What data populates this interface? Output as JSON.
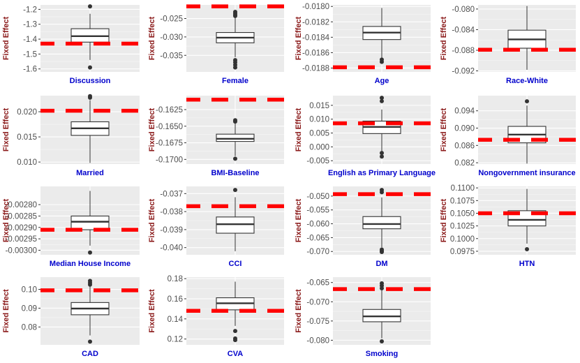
{
  "chart_data": [
    {
      "type": "box",
      "title": "",
      "xlabel": "Discussion",
      "ylabel": "Fixed Effect",
      "ylim": [
        -1.62,
        -1.17
      ],
      "yticks": [
        -1.6,
        -1.5,
        -1.4,
        -1.3,
        -1.2
      ],
      "tick_labels": [
        "-1.6",
        "-1.5",
        "-1.4",
        "-1.3",
        "-1.2"
      ],
      "box": {
        "whisker_low": -1.54,
        "q1": -1.42,
        "median": -1.38,
        "q3": -1.33,
        "whisker_high": -1.23
      },
      "outliers": [
        -1.18,
        -1.59
      ],
      "reference_line": -1.43
    },
    {
      "type": "box",
      "title": "",
      "xlabel": "Female",
      "ylabel": "Fixed Effect",
      "ylim": [
        -0.0395,
        -0.0213
      ],
      "yticks": [
        -0.035,
        -0.03,
        -0.025
      ],
      "tick_labels": [
        "-0.035",
        "-0.030",
        "-0.025"
      ],
      "box": {
        "whisker_low": -0.0355,
        "q1": -0.0316,
        "median": -0.0302,
        "q3": -0.0288,
        "whisker_high": -0.0247
      },
      "outliers": [
        -0.0232,
        -0.0236,
        -0.024,
        -0.0243,
        -0.0363,
        -0.0369,
        -0.0376,
        -0.0383
      ],
      "reference_line": -0.0217
    },
    {
      "type": "box",
      "title": "",
      "xlabel": "Age",
      "ylabel": "Fixed Effect",
      "ylim": [
        -0.01885,
        -0.01798
      ],
      "yticks": [
        -0.0188,
        -0.0186,
        -0.0184,
        -0.0182,
        -0.018
      ],
      "tick_labels": [
        "-0.0188",
        "-0.0186",
        "-0.0184",
        "-0.0182",
        "-0.0180"
      ],
      "box": {
        "whisker_low": -0.01867,
        "q1": -0.01843,
        "median": -0.01834,
        "q3": -0.01826,
        "whisker_high": -0.01802
      },
      "outliers": [
        -0.01869,
        -0.01872
      ],
      "reference_line": -0.01879
    },
    {
      "type": "box",
      "title": "",
      "xlabel": "Race-White",
      "ylabel": "Fixed Effect",
      "ylim": [
        -0.0922,
        -0.0792
      ],
      "yticks": [
        -0.092,
        -0.088,
        -0.084,
        -0.08
      ],
      "tick_labels": [
        "-0.092",
        "-0.088",
        "-0.084",
        "-0.080"
      ],
      "box": {
        "whisker_low": -0.0918,
        "q1": -0.0876,
        "median": -0.0859,
        "q3": -0.0841,
        "whisker_high": -0.0794
      },
      "outliers": [],
      "reference_line": -0.0879
    },
    {
      "type": "box",
      "title": "",
      "xlabel": "Married",
      "ylabel": "Fixed Effect",
      "ylim": [
        0.0096,
        0.0232
      ],
      "yticks": [
        0.01,
        0.015,
        0.02
      ],
      "tick_labels": [
        "0.010",
        "0.015",
        "0.020"
      ],
      "box": {
        "whisker_low": 0.0098,
        "q1": 0.0153,
        "median": 0.0167,
        "q3": 0.018,
        "whisker_high": 0.0223
      },
      "outliers": [
        0.0228,
        0.0231
      ],
      "reference_line": 0.0202
    },
    {
      "type": "box",
      "title": "",
      "xlabel": "BMI-Baseline",
      "ylabel": "Fixed Effect",
      "ylim": [
        -0.1707,
        -0.1604
      ],
      "yticks": [
        -0.17,
        -0.1675,
        -0.165,
        -0.1625
      ],
      "tick_labels": [
        "-0.1700",
        "-0.1675",
        "-0.1650",
        "-0.1625"
      ],
      "box": {
        "whisker_low": -0.1695,
        "q1": -0.1673,
        "median": -0.1669,
        "q3": -0.1662,
        "whisker_high": -0.1646
      },
      "outliers": [
        -0.1641,
        -0.1643,
        -0.1699
      ],
      "reference_line": -0.161
    },
    {
      "type": "box",
      "title": "",
      "xlabel": "English as Primary Language",
      "ylabel": "Fixed Effect",
      "ylim": [
        -0.0062,
        0.0185
      ],
      "yticks": [
        -0.005,
        0,
        0.005,
        0.01,
        0.015
      ],
      "tick_labels": [
        "-0.005",
        "0.000",
        "0.005",
        "0.010",
        "0.015"
      ],
      "box": {
        "whisker_low": -0.0015,
        "q1": 0.0048,
        "median": 0.0072,
        "q3": 0.0093,
        "whisker_high": 0.0135
      },
      "outliers": [
        0.0177,
        0.0165,
        -0.0022,
        -0.0035
      ],
      "reference_line": 0.0085
    },
    {
      "type": "box",
      "title": "",
      "xlabel": "Nongovernment insurance",
      "ylabel": "Fixed Effect",
      "ylim": [
        0.0817,
        0.0975
      ],
      "yticks": [
        0.082,
        0.086,
        0.09,
        0.094
      ],
      "tick_labels": [
        "0.082",
        "0.086",
        "0.090",
        "0.094"
      ],
      "box": {
        "whisker_low": 0.0818,
        "q1": 0.0866,
        "median": 0.0885,
        "q3": 0.0904,
        "whisker_high": 0.0952
      },
      "outliers": [
        0.0962
      ],
      "reference_line": 0.0873
    },
    {
      "type": "box",
      "title": "",
      "xlabel": "Median House Income",
      "ylabel": "Fixed Effect",
      "ylim": [
        -0.00302,
        -0.00272
      ],
      "yticks": [
        -0.003,
        -0.00295,
        -0.0029,
        -0.00285,
        -0.0028
      ],
      "tick_labels": [
        "-0.00300",
        "-0.00295",
        "-0.00290",
        "-0.00285",
        "-0.00280"
      ],
      "box": {
        "whisker_low": -0.00298,
        "q1": -0.00291,
        "median": -0.002875,
        "q3": -0.00285,
        "whisker_high": -0.00274
      },
      "outliers": [
        -0.00301
      ],
      "reference_line": -0.00291
    },
    {
      "type": "box",
      "title": "",
      "xlabel": "CCI",
      "ylabel": "Fixed Effect",
      "ylim": [
        -0.0404,
        -0.0366
      ],
      "yticks": [
        -0.04,
        -0.039,
        -0.038,
        -0.037
      ],
      "tick_labels": [
        "-0.040",
        "-0.039",
        "-0.038",
        "-0.037"
      ],
      "box": {
        "whisker_low": -0.0402,
        "q1": -0.0392,
        "median": -0.0387,
        "q3": -0.0383,
        "whisker_high": -0.0372
      },
      "outliers": [
        -0.0368
      ],
      "reference_line": -0.0377
    },
    {
      "type": "box",
      "title": "",
      "xlabel": "DM",
      "ylabel": "Fixed Effect",
      "ylim": [
        -0.0712,
        -0.0465
      ],
      "yticks": [
        -0.07,
        -0.065,
        -0.06,
        -0.055,
        -0.05
      ],
      "tick_labels": [
        "-0.070",
        "-0.065",
        "-0.060",
        "-0.055",
        "-0.050"
      ],
      "box": {
        "whisker_low": -0.0685,
        "q1": -0.0618,
        "median": -0.0601,
        "q3": -0.0574,
        "whisker_high": -0.0505
      },
      "outliers": [
        -0.0478,
        -0.0486,
        -0.0693,
        -0.0698,
        -0.0702
      ],
      "reference_line": -0.0493
    },
    {
      "type": "box",
      "title": "",
      "xlabel": "HTN",
      "ylabel": "Fixed Effect",
      "ylim": [
        0.0968,
        0.1103
      ],
      "yticks": [
        0.0975,
        0.1,
        0.1025,
        0.105,
        0.1075,
        0.11
      ],
      "tick_labels": [
        "0.0975",
        "0.1000",
        "0.1025",
        "0.1050",
        "0.1075",
        "0.1100"
      ],
      "box": {
        "whisker_low": 0.099,
        "q1": 0.1025,
        "median": 0.1037,
        "q3": 0.1055,
        "whisker_high": 0.1098
      },
      "outliers": [
        0.0979
      ],
      "reference_line": 0.105
    },
    {
      "type": "box",
      "title": "",
      "xlabel": "CAD",
      "ylabel": "Fixed Effect",
      "ylim": [
        0.0705,
        0.1065
      ],
      "yticks": [
        0.08,
        0.09,
        0.1
      ],
      "tick_labels": [
        "0.08",
        "0.09",
        "0.10"
      ],
      "box": {
        "whisker_low": 0.0755,
        "q1": 0.0865,
        "median": 0.0898,
        "q3": 0.093,
        "whisker_high": 0.1015
      },
      "outliers": [
        0.1035,
        0.1045,
        0.1025,
        0.0722
      ],
      "reference_line": 0.0995
    },
    {
      "type": "box",
      "title": "",
      "xlabel": "CVA",
      "ylabel": "Fixed Effect",
      "ylim": [
        0.1142,
        0.1815
      ],
      "yticks": [
        0.12,
        0.14,
        0.16,
        0.18
      ],
      "tick_labels": [
        "0.12",
        "0.14",
        "0.16",
        "0.18"
      ],
      "box": {
        "whisker_low": 0.133,
        "q1": 0.149,
        "median": 0.1555,
        "q3": 0.161,
        "whisker_high": 0.177
      },
      "outliers": [
        0.128,
        0.1205,
        0.119
      ],
      "reference_line": 0.148
    },
    {
      "type": "box",
      "title": "",
      "xlabel": "Smoking",
      "ylabel": "Fixed Effect",
      "ylim": [
        -0.0812,
        -0.0636
      ],
      "yticks": [
        -0.08,
        -0.075,
        -0.07,
        -0.065
      ],
      "tick_labels": [
        "-0.080",
        "-0.075",
        "-0.070",
        "-0.065"
      ],
      "box": {
        "whisker_low": -0.0795,
        "q1": -0.0752,
        "median": -0.0738,
        "q3": -0.072,
        "whisker_high": -0.067
      },
      "outliers": [
        -0.0652,
        -0.0658,
        -0.0665,
        -0.0803
      ],
      "reference_line": -0.0667
    }
  ],
  "colors": {
    "panel_background": "#ebebeb",
    "grid_major": "#ffffff",
    "box_fill": "#ffffff",
    "box_stroke": "#333333",
    "reference_line": "#ff0000",
    "ylabel_text": "#8b1a1a",
    "xlabel_text": "#0000cc",
    "tick_text": "#4d4d4d"
  },
  "style": {
    "grid": true,
    "legend": "none",
    "reference_line_style": "dashed"
  }
}
